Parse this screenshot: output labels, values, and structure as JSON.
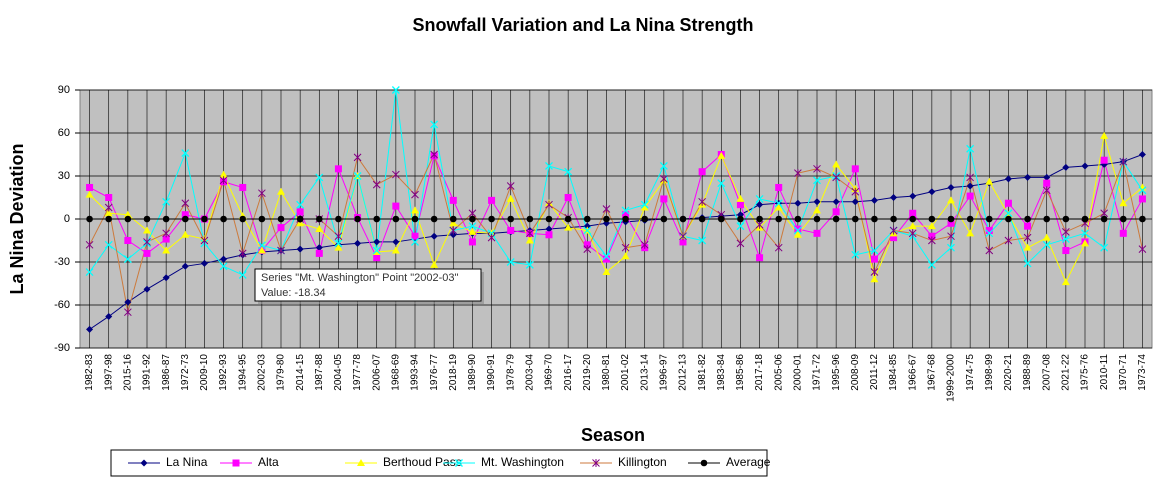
{
  "chart_data": {
    "type": "line",
    "title": "Snowfall Variation and La Nina Strength",
    "x_label": "Season",
    "y_label": "La Nina Deviation",
    "ylim": [
      -90,
      90
    ],
    "yticks": [
      -90,
      -60,
      -30,
      0,
      30,
      60,
      90
    ],
    "grid": true,
    "legend": "bottom",
    "categories": [
      "1982-83",
      "1997-98",
      "2015-16",
      "1991-92",
      "1986-87",
      "1972-73",
      "2009-10",
      "1992-93",
      "1994-95",
      "2002-03",
      "1979-80",
      "2014-15",
      "1987-88",
      "2004-05",
      "1977-78",
      "2006-07",
      "1968-69",
      "1993-94",
      "1976-77",
      "2018-19",
      "1989-90",
      "1990-91",
      "1978-79",
      "2003-04",
      "1969-70",
      "2016-17",
      "2019-20",
      "1980-81",
      "2001-02",
      "2013-14",
      "1996-97",
      "2012-13",
      "1981-82",
      "1983-84",
      "1985-86",
      "2017-18",
      "2005-06",
      "2000-01",
      "1971-72",
      "1995-96",
      "2008-09",
      "2011-12",
      "1984-85",
      "1966-67",
      "1967-68",
      "1999-2000",
      "1974-75",
      "1998-99",
      "2020-21",
      "1988-89",
      "2007-08",
      "2021-22",
      "1975-76",
      "2010-11",
      "1970-71",
      "1973-74"
    ],
    "series": [
      {
        "name": "La Nina",
        "color": "#000080",
        "marker": "diamond",
        "values": [
          -77,
          -68,
          -58,
          -49,
          -41,
          -33,
          -31,
          -28,
          -25,
          -23,
          -22,
          -21,
          -20,
          -18,
          -17,
          -16,
          -16,
          -14,
          -12,
          -11,
          -10,
          -10,
          -9,
          -8,
          -7,
          -6,
          -5,
          -3,
          -2,
          -1,
          0,
          0,
          1,
          2,
          3,
          10,
          11,
          11,
          12,
          12,
          12,
          13,
          15,
          16,
          19,
          22,
          23,
          25,
          28,
          29,
          29,
          36,
          37,
          38,
          40,
          45
        ]
      },
      {
        "name": "Alta",
        "color": "#ff00ff",
        "marker": "square",
        "values": [
          22,
          15,
          -15,
          -24,
          -14,
          3,
          0,
          26,
          22,
          -22,
          -6,
          5,
          -24,
          35,
          1,
          -27,
          9,
          -12,
          44,
          13,
          -16,
          13,
          -8,
          -10,
          -11,
          15,
          -18,
          -28,
          3,
          -20,
          14,
          -16,
          33,
          45,
          10,
          -27,
          22,
          -7,
          -10,
          5,
          35,
          -28,
          -13,
          4,
          -12,
          -3,
          16,
          -8,
          11,
          -5,
          25,
          -22,
          -16,
          41,
          -10,
          14
        ]
      },
      {
        "name": "Berthoud Pass",
        "color": "#ffff00",
        "marker": "triangle",
        "values": [
          17,
          4,
          3,
          -8,
          -22,
          -11,
          -14,
          31,
          2,
          -22,
          19,
          -3,
          -7,
          -20,
          30,
          -23,
          -22,
          6,
          -32,
          -3,
          -9,
          -10,
          14,
          -15,
          11,
          -6,
          -8,
          -37,
          -26,
          8,
          27,
          -12,
          10,
          44,
          14,
          -6,
          8,
          -11,
          6,
          38,
          21,
          -42,
          -10,
          -5,
          -5,
          13,
          -10,
          26,
          3,
          -20,
          -13,
          -44,
          -17,
          58,
          11,
          22
        ]
      },
      {
        "name": "Mt. Washington",
        "color": "#00ffff",
        "marker": "x",
        "values": [
          -37,
          -18,
          -28,
          -17,
          12,
          46,
          -17,
          -33,
          -39,
          -18.34,
          -22,
          10,
          29,
          -17,
          30,
          -22,
          90,
          -16,
          66,
          -8,
          -5,
          -10,
          -30,
          -32,
          37,
          33,
          -8,
          -26,
          6,
          10,
          37,
          -12,
          -15,
          25,
          -5,
          14,
          11,
          -8,
          27,
          30,
          -25,
          -22,
          -8,
          -12,
          -32,
          -20,
          49,
          -10,
          4,
          -31,
          -18,
          -14,
          -10,
          -20,
          40,
          20
        ]
      },
      {
        "name": "Killington",
        "color": "#cc7a3c",
        "marker_color": "#800080",
        "marker": "star",
        "values": [
          -18,
          8,
          -65,
          -16,
          -10,
          11,
          -15,
          27,
          -24,
          18,
          -22,
          0,
          0,
          -12,
          43,
          24,
          31,
          17,
          45,
          -8,
          4,
          -13,
          23,
          -10,
          10,
          1,
          -21,
          7,
          -20,
          -18,
          28,
          -12,
          12,
          3,
          -17,
          -4,
          -20,
          32,
          35,
          29,
          19,
          -37,
          -8,
          -10,
          -15,
          -12,
          29,
          -22,
          -15,
          -13,
          20,
          -9,
          -3,
          4,
          40,
          -21
        ]
      },
      {
        "name": "Average",
        "color": "#000000",
        "marker": "circle",
        "values": [
          0,
          0,
          0,
          0,
          0,
          0,
          0,
          0,
          0,
          0,
          0,
          0,
          0,
          0,
          0,
          0,
          0,
          0,
          0,
          0,
          0,
          0,
          0,
          0,
          0,
          0,
          0,
          0,
          0,
          0,
          0,
          0,
          0,
          0,
          0,
          0,
          0,
          0,
          0,
          0,
          0,
          0,
          0,
          0,
          0,
          0,
          0,
          0,
          0,
          0,
          0,
          0,
          0,
          0,
          0,
          0
        ]
      }
    ],
    "tooltip": {
      "text": "Series \"Mt. Washington\" Point \"2002-03\"",
      "value": "Value: -18.34"
    }
  }
}
